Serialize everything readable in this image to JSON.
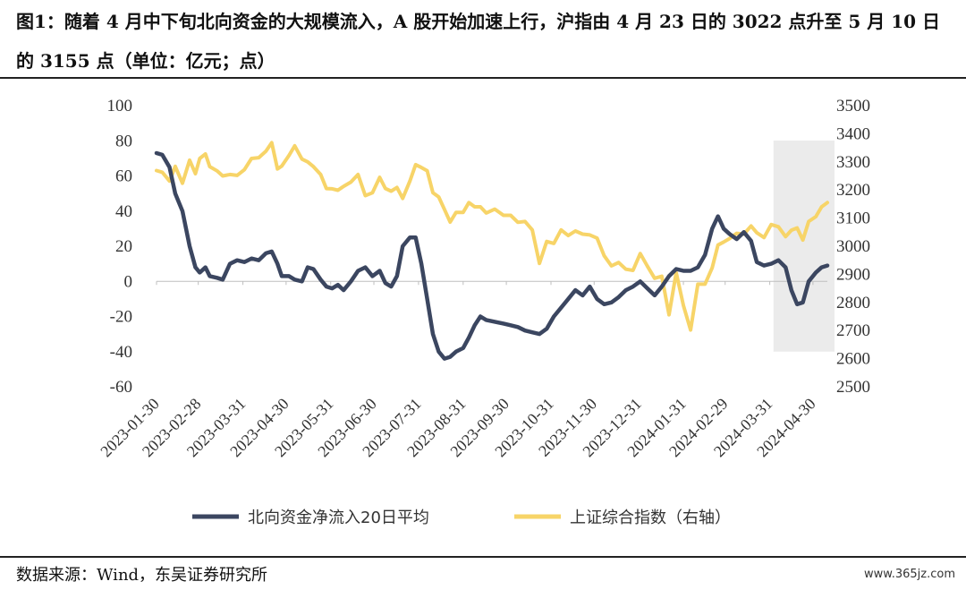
{
  "title": "图1：随着 4 月中下旬北向资金的大规模流入，A 股开始加速上行，沪指由 4 月 23 日的 3022 点升至 5 月 10 日的 3155 点（单位：亿元；点）",
  "source": "数据来源：Wind，东吴证券研究所",
  "watermark": "www.365jz.com",
  "chart_data": {
    "type": "line",
    "x_tick_labels": [
      "2023-01-30",
      "2023-02-28",
      "2023-03-31",
      "2023-04-30",
      "2023-05-31",
      "2023-06-30",
      "2023-07-31",
      "2023-08-31",
      "2023-09-30",
      "2023-10-31",
      "2023-11-30",
      "2023-12-31",
      "2024-01-31",
      "2024-02-29",
      "2024-03-31",
      "2024-04-30"
    ],
    "y_left": {
      "ticks": [
        "100",
        "80",
        "60",
        "40",
        "20",
        "0",
        "-20",
        "-40",
        "-60"
      ],
      "range": [
        -60,
        100
      ]
    },
    "y_right": {
      "ticks": [
        "3500",
        "3400",
        "3300",
        "3200",
        "3100",
        "3000",
        "2900",
        "2800",
        "2700",
        "2600",
        "2500"
      ],
      "range": [
        2500,
        3500
      ]
    },
    "highlight_region": {
      "from": "2024-04-15",
      "to": "2024-05-10",
      "color": "#ebebeb"
    },
    "grid": false,
    "legend_position": "bottom",
    "series": [
      {
        "name": "北向资金净流入20日平均",
        "axis": "left",
        "color": "#3b4660",
        "points": [
          [
            "2023-01-30",
            73
          ],
          [
            "2023-02-03",
            72
          ],
          [
            "2023-02-08",
            65
          ],
          [
            "2023-02-12",
            50
          ],
          [
            "2023-02-17",
            40
          ],
          [
            "2023-02-22",
            20
          ],
          [
            "2023-02-26",
            8
          ],
          [
            "2023-03-01",
            5
          ],
          [
            "2023-03-05",
            8
          ],
          [
            "2023-03-08",
            3
          ],
          [
            "2023-03-13",
            2
          ],
          [
            "2023-03-17",
            1
          ],
          [
            "2023-03-22",
            10
          ],
          [
            "2023-03-27",
            12
          ],
          [
            "2023-04-01",
            11
          ],
          [
            "2023-04-06",
            13
          ],
          [
            "2023-04-11",
            12
          ],
          [
            "2023-04-16",
            16
          ],
          [
            "2023-04-20",
            17
          ],
          [
            "2023-04-24",
            10
          ],
          [
            "2023-04-27",
            3
          ],
          [
            "2023-05-02",
            3
          ],
          [
            "2023-05-06",
            1
          ],
          [
            "2023-05-11",
            0
          ],
          [
            "2023-05-15",
            8
          ],
          [
            "2023-05-19",
            7
          ],
          [
            "2023-05-24",
            1
          ],
          [
            "2023-05-28",
            -3
          ],
          [
            "2023-06-01",
            -4
          ],
          [
            "2023-06-05",
            -2
          ],
          [
            "2023-06-09",
            -5
          ],
          [
            "2023-06-14",
            0
          ],
          [
            "2023-06-19",
            6
          ],
          [
            "2023-06-24",
            8
          ],
          [
            "2023-06-29",
            3
          ],
          [
            "2023-07-04",
            6
          ],
          [
            "2023-07-08",
            -1
          ],
          [
            "2023-07-12",
            -3
          ],
          [
            "2023-07-16",
            3
          ],
          [
            "2023-07-20",
            20
          ],
          [
            "2023-07-25",
            25
          ],
          [
            "2023-07-29",
            25
          ],
          [
            "2023-08-02",
            10
          ],
          [
            "2023-08-06",
            -10
          ],
          [
            "2023-08-10",
            -30
          ],
          [
            "2023-08-14",
            -40
          ],
          [
            "2023-08-18",
            -44
          ],
          [
            "2023-08-22",
            -43
          ],
          [
            "2023-08-26",
            -40
          ],
          [
            "2023-08-31",
            -38
          ],
          [
            "2023-09-04",
            -32
          ],
          [
            "2023-09-08",
            -25
          ],
          [
            "2023-09-12",
            -20
          ],
          [
            "2023-09-16",
            -22
          ],
          [
            "2023-09-22",
            -23
          ],
          [
            "2023-09-28",
            -24
          ],
          [
            "2023-10-03",
            -25
          ],
          [
            "2023-10-08",
            -26
          ],
          [
            "2023-10-13",
            -28
          ],
          [
            "2023-10-18",
            -29
          ],
          [
            "2023-10-23",
            -30
          ],
          [
            "2023-10-28",
            -27
          ],
          [
            "2023-11-02",
            -20
          ],
          [
            "2023-11-07",
            -15
          ],
          [
            "2023-11-12",
            -10
          ],
          [
            "2023-11-17",
            -5
          ],
          [
            "2023-11-22",
            -8
          ],
          [
            "2023-11-27",
            -3
          ],
          [
            "2023-12-02",
            -10
          ],
          [
            "2023-12-07",
            -13
          ],
          [
            "2023-12-12",
            -12
          ],
          [
            "2023-12-17",
            -9
          ],
          [
            "2023-12-22",
            -5
          ],
          [
            "2023-12-27",
            -3
          ],
          [
            "2024-01-01",
            0
          ],
          [
            "2024-01-06",
            -4
          ],
          [
            "2024-01-11",
            -8
          ],
          [
            "2024-01-16",
            -3
          ],
          [
            "2024-01-21",
            3
          ],
          [
            "2024-01-26",
            7
          ],
          [
            "2024-01-31",
            6
          ],
          [
            "2024-02-05",
            6
          ],
          [
            "2024-02-10",
            8
          ],
          [
            "2024-02-15",
            15
          ],
          [
            "2024-02-20",
            30
          ],
          [
            "2024-02-24",
            37
          ],
          [
            "2024-02-28",
            30
          ],
          [
            "2024-03-03",
            27
          ],
          [
            "2024-03-08",
            24
          ],
          [
            "2024-03-13",
            28
          ],
          [
            "2024-03-18",
            23
          ],
          [
            "2024-03-22",
            11
          ],
          [
            "2024-03-27",
            9
          ],
          [
            "2024-04-01",
            10
          ],
          [
            "2024-04-06",
            12
          ],
          [
            "2024-04-11",
            8
          ],
          [
            "2024-04-15",
            -5
          ],
          [
            "2024-04-19",
            -13
          ],
          [
            "2024-04-23",
            -12
          ],
          [
            "2024-04-27",
            0
          ],
          [
            "2024-05-02",
            5
          ],
          [
            "2024-05-06",
            8
          ],
          [
            "2024-05-10",
            9
          ]
        ]
      },
      {
        "name": "上证综合指数（右轴）",
        "axis": "right",
        "color": "#f7d468",
        "points": [
          [
            "2023-01-30",
            3269
          ],
          [
            "2023-02-03",
            3263
          ],
          [
            "2023-02-08",
            3232
          ],
          [
            "2023-02-12",
            3284
          ],
          [
            "2023-02-17",
            3224
          ],
          [
            "2023-02-22",
            3306
          ],
          [
            "2023-02-26",
            3258
          ],
          [
            "2023-03-01",
            3312
          ],
          [
            "2023-03-05",
            3328
          ],
          [
            "2023-03-08",
            3283
          ],
          [
            "2023-03-13",
            3268
          ],
          [
            "2023-03-17",
            3250
          ],
          [
            "2023-03-22",
            3255
          ],
          [
            "2023-03-27",
            3252
          ],
          [
            "2023-04-01",
            3272
          ],
          [
            "2023-04-06",
            3312
          ],
          [
            "2023-04-11",
            3315
          ],
          [
            "2023-04-16",
            3338
          ],
          [
            "2023-04-20",
            3368
          ],
          [
            "2023-04-24",
            3275
          ],
          [
            "2023-04-27",
            3285
          ],
          [
            "2023-05-02",
            3323
          ],
          [
            "2023-05-06",
            3357
          ],
          [
            "2023-05-11",
            3310
          ],
          [
            "2023-05-15",
            3300
          ],
          [
            "2023-05-19",
            3283
          ],
          [
            "2023-05-24",
            3255
          ],
          [
            "2023-05-28",
            3205
          ],
          [
            "2023-06-01",
            3204
          ],
          [
            "2023-06-05",
            3199
          ],
          [
            "2023-06-09",
            3213
          ],
          [
            "2023-06-14",
            3228
          ],
          [
            "2023-06-19",
            3255
          ],
          [
            "2023-06-24",
            3180
          ],
          [
            "2023-06-29",
            3190
          ],
          [
            "2023-07-04",
            3245
          ],
          [
            "2023-07-08",
            3205
          ],
          [
            "2023-07-12",
            3196
          ],
          [
            "2023-07-16",
            3209
          ],
          [
            "2023-07-20",
            3170
          ],
          [
            "2023-07-25",
            3232
          ],
          [
            "2023-07-29",
            3290
          ],
          [
            "2023-08-02",
            3280
          ],
          [
            "2023-08-06",
            3268
          ],
          [
            "2023-08-10",
            3190
          ],
          [
            "2023-08-14",
            3175
          ],
          [
            "2023-08-18",
            3131
          ],
          [
            "2023-08-22",
            3086
          ],
          [
            "2023-08-26",
            3120
          ],
          [
            "2023-08-31",
            3120
          ],
          [
            "2023-09-04",
            3155
          ],
          [
            "2023-09-08",
            3140
          ],
          [
            "2023-09-12",
            3140
          ],
          [
            "2023-09-16",
            3118
          ],
          [
            "2023-09-22",
            3132
          ],
          [
            "2023-09-28",
            3110
          ],
          [
            "2023-10-03",
            3110
          ],
          [
            "2023-10-08",
            3085
          ],
          [
            "2023-10-13",
            3088
          ],
          [
            "2023-10-18",
            3058
          ],
          [
            "2023-10-23",
            2939
          ],
          [
            "2023-10-28",
            3017
          ],
          [
            "2023-11-02",
            3010
          ],
          [
            "2023-11-07",
            3058
          ],
          [
            "2023-11-12",
            3038
          ],
          [
            "2023-11-17",
            3054
          ],
          [
            "2023-11-22",
            3043
          ],
          [
            "2023-11-27",
            3040
          ],
          [
            "2023-12-02",
            3029
          ],
          [
            "2023-12-07",
            2966
          ],
          [
            "2023-12-12",
            2930
          ],
          [
            "2023-12-17",
            2942
          ],
          [
            "2023-12-22",
            2918
          ],
          [
            "2023-12-27",
            2914
          ],
          [
            "2024-01-01",
            2974
          ],
          [
            "2024-01-06",
            2929
          ],
          [
            "2024-01-11",
            2886
          ],
          [
            "2024-01-16",
            2893
          ],
          [
            "2024-01-21",
            2756
          ],
          [
            "2024-01-26",
            2906
          ],
          [
            "2024-01-31",
            2789
          ],
          [
            "2024-02-05",
            2702
          ],
          [
            "2024-02-10",
            2865
          ],
          [
            "2024-02-15",
            2865
          ],
          [
            "2024-02-20",
            2923
          ],
          [
            "2024-02-24",
            3004
          ],
          [
            "2024-02-28",
            3015
          ],
          [
            "2024-03-03",
            3027
          ],
          [
            "2024-03-08",
            3046
          ],
          [
            "2024-03-13",
            3043
          ],
          [
            "2024-03-18",
            3072
          ],
          [
            "2024-03-22",
            3048
          ],
          [
            "2024-03-27",
            3031
          ],
          [
            "2024-04-01",
            3077
          ],
          [
            "2024-04-06",
            3069
          ],
          [
            "2024-04-11",
            3034
          ],
          [
            "2024-04-15",
            3057
          ],
          [
            "2024-04-19",
            3065
          ],
          [
            "2024-04-23",
            3022
          ],
          [
            "2024-04-27",
            3088
          ],
          [
            "2024-05-02",
            3105
          ],
          [
            "2024-05-06",
            3140
          ],
          [
            "2024-05-10",
            3155
          ]
        ]
      }
    ]
  }
}
